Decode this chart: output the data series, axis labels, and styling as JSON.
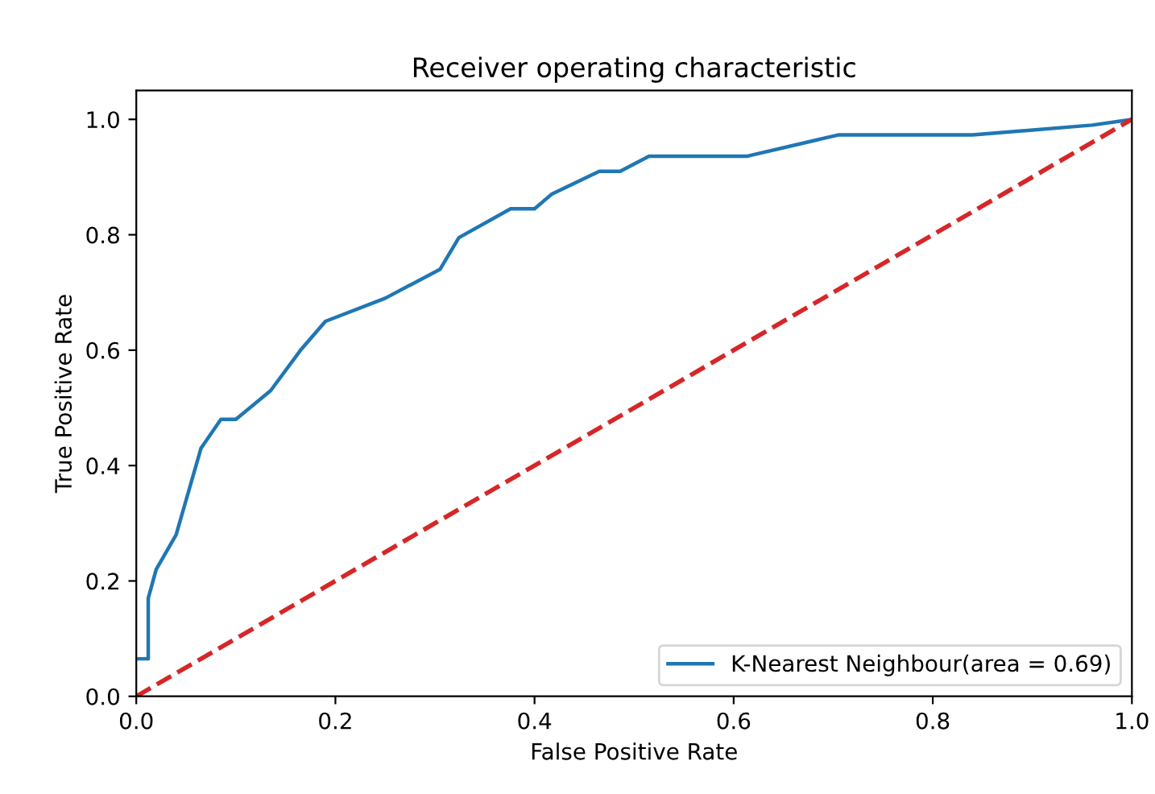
{
  "chart_data": {
    "type": "line",
    "title": "Receiver operating characteristic",
    "xlabel": "False Positive Rate",
    "ylabel": "True Positive Rate",
    "series": [
      {
        "name": "K-Nearest Neighbour(area = 0.69)",
        "color": "#1f77b4",
        "x": [
          0,
          0.012,
          0.012,
          0.02,
          0.04,
          0.065,
          0.085,
          0.1,
          0.135,
          0.165,
          0.19,
          0.25,
          0.305,
          0.324,
          0.376,
          0.4,
          0.417,
          0.465,
          0.486,
          0.515,
          0.613,
          0.705,
          0.84,
          0.96,
          1.0
        ],
        "values": [
          0.065,
          0.065,
          0.17,
          0.22,
          0.28,
          0.43,
          0.48,
          0.48,
          0.53,
          0.6,
          0.65,
          0.69,
          0.74,
          0.795,
          0.845,
          0.845,
          0.87,
          0.91,
          0.91,
          0.936,
          0.936,
          0.973,
          0.973,
          0.99,
          1.0
        ]
      },
      {
        "color": "#d62728",
        "line_style": "dashed",
        "x": [
          0,
          1
        ],
        "values": [
          0,
          1
        ]
      }
    ],
    "xlim": [
      0,
      1
    ],
    "ylim": [
      0,
      1.05
    ],
    "xticks": [
      {
        "value": 0,
        "label": "0.0"
      },
      0.2,
      0.4,
      0.6,
      0.8,
      {
        "value": 1,
        "label": "1.0"
      }
    ],
    "yticks": [
      {
        "value": 0,
        "label": "0.0"
      },
      0.2,
      0.4,
      0.6,
      0.8,
      {
        "value": 1,
        "label": "1.0"
      }
    ],
    "legend": "bottom right",
    "grid": false
  }
}
